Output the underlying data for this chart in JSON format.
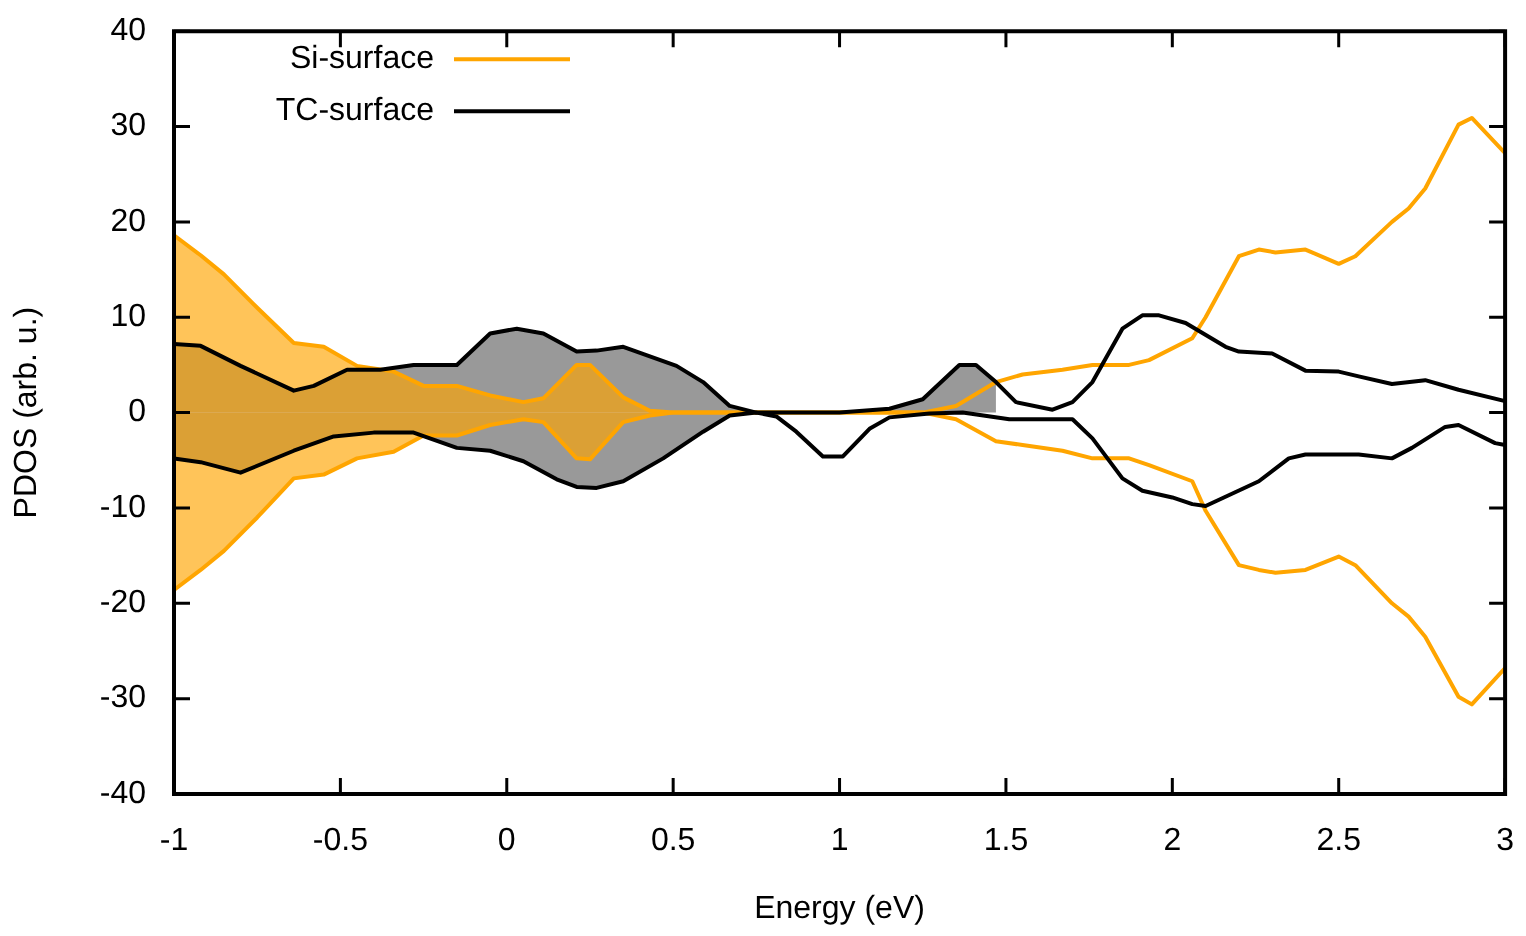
{
  "chart_data": {
    "type": "line",
    "xlabel": "Energy (eV)",
    "ylabel": "PDOS (arb. u.)",
    "xlim": [
      -1,
      3
    ],
    "xticks": [
      -1,
      -0.5,
      0,
      0.5,
      1,
      1.5,
      2,
      2.5,
      3
    ],
    "ylim": [
      -40,
      40
    ],
    "yticks": [
      -40,
      -30,
      -20,
      -10,
      0,
      10,
      20,
      30,
      40
    ],
    "legend": "top left",
    "series": [
      {
        "type": "area",
        "color": "#999999",
        "x": [
          -1,
          -0.92,
          -0.8,
          -0.64,
          -0.58,
          -0.48,
          -0.38,
          -0.28,
          -0.15,
          -0.05,
          0.03,
          0.11,
          0.21,
          0.27,
          0.35,
          0.51,
          0.59,
          0.67,
          0.75
        ],
        "values": [
          7.2,
          7.0,
          4.9,
          2.3,
          2.8,
          4.5,
          4.5,
          5.0,
          5.0,
          8.3,
          8.8,
          8.3,
          6.4,
          6.5,
          6.9,
          4.9,
          3.2,
          0.7,
          0
        ]
      },
      {
        "type": "area",
        "color": "#999999",
        "x": [
          -1,
          -0.92,
          -0.8,
          -0.64,
          -0.52,
          -0.4,
          -0.28,
          -0.15,
          -0.05,
          0.05,
          0.15,
          0.21,
          0.27,
          0.35,
          0.47,
          0.59,
          0.67,
          0.75
        ],
        "values": [
          -4.8,
          -5.2,
          -6.3,
          -4.0,
          -2.5,
          -2.1,
          -2.1,
          -3.7,
          -4.0,
          -5.1,
          -7.0,
          -7.8,
          -7.9,
          -7.2,
          -4.8,
          -2.0,
          -0.3,
          0
        ]
      },
      {
        "type": "area",
        "color": "#999999",
        "x": [
          1.15,
          1.25,
          1.36,
          1.41,
          1.47
        ],
        "values": [
          0.4,
          1.4,
          5.0,
          5.0,
          3.2
        ]
      },
      {
        "type": "area",
        "color": "#ffa500",
        "x": [
          -1,
          -0.92,
          -0.85,
          -0.75,
          -0.64,
          -0.55,
          -0.45,
          -0.34,
          -0.25,
          -0.15,
          -0.05,
          0.05,
          0.11,
          0.21,
          0.25,
          0.35,
          0.43,
          0.5
        ],
        "values": [
          18.6,
          16.5,
          14.5,
          11,
          7.3,
          6.9,
          4.9,
          4.3,
          2.8,
          2.8,
          1.8,
          1.1,
          1.5,
          5.0,
          5.0,
          1.6,
          0.2,
          0
        ]
      },
      {
        "type": "area",
        "color": "#ffa500",
        "x": [
          -1,
          -0.92,
          -0.85,
          -0.75,
          -0.64,
          -0.55,
          -0.45,
          -0.34,
          -0.25,
          -0.15,
          -0.05,
          0.05,
          0.11,
          0.21,
          0.25,
          0.35,
          0.43,
          0.5
        ],
        "values": [
          -18.6,
          -16.5,
          -14.5,
          -11,
          -6.9,
          -6.5,
          -4.8,
          -4.1,
          -2.4,
          -2.4,
          -1.3,
          -0.7,
          -1.0,
          -4.8,
          -4.9,
          -1.0,
          -0.3,
          0
        ]
      },
      {
        "name": "Si-surface",
        "color": "#ffa500",
        "x": [
          -1,
          -0.92,
          -0.85,
          -0.75,
          -0.64,
          -0.55,
          -0.45,
          -0.34,
          -0.25,
          -0.15,
          -0.05,
          0.05,
          0.11,
          0.21,
          0.25,
          0.35,
          0.43,
          0.5,
          0.7,
          1.0,
          1.25,
          1.35,
          1.47,
          1.55,
          1.67,
          1.76,
          1.87,
          1.93,
          2.06,
          2.1,
          2.2,
          2.26,
          2.31,
          2.4,
          2.5,
          2.55,
          2.66,
          2.71,
          2.76,
          2.86,
          2.9,
          3.0
        ],
        "values": [
          18.6,
          16.5,
          14.5,
          11,
          7.3,
          6.9,
          4.9,
          4.3,
          2.8,
          2.8,
          1.8,
          1.1,
          1.5,
          5.0,
          5.0,
          1.6,
          0.2,
          0,
          0,
          0,
          0,
          0.7,
          3.2,
          4.0,
          4.5,
          5.0,
          5.0,
          5.5,
          7.8,
          10.0,
          16.4,
          17.1,
          16.8,
          17.1,
          15.6,
          16.4,
          20.0,
          21.4,
          23.5,
          30.2,
          30.9,
          27.2
        ]
      },
      {
        "color": "#ffa500",
        "x": [
          -1,
          -0.92,
          -0.85,
          -0.75,
          -0.64,
          -0.55,
          -0.45,
          -0.34,
          -0.25,
          -0.15,
          -0.05,
          0.05,
          0.11,
          0.21,
          0.25,
          0.35,
          0.43,
          0.5,
          0.7,
          1.0,
          1.25,
          1.35,
          1.47,
          1.55,
          1.67,
          1.76,
          1.87,
          1.93,
          2.06,
          2.1,
          2.2,
          2.26,
          2.31,
          2.4,
          2.5,
          2.55,
          2.66,
          2.71,
          2.76,
          2.86,
          2.9,
          3.0
        ],
        "values": [
          -18.6,
          -16.5,
          -14.5,
          -11,
          -6.9,
          -6.5,
          -4.8,
          -4.1,
          -2.4,
          -2.4,
          -1.3,
          -0.7,
          -1.0,
          -4.8,
          -4.9,
          -1.0,
          -0.3,
          0,
          0,
          0,
          0,
          -0.7,
          -3.0,
          -3.4,
          -4.0,
          -4.8,
          -4.8,
          -5.5,
          -7.2,
          -10.3,
          -16.0,
          -16.5,
          -16.8,
          -16.5,
          -15.1,
          -16.0,
          -20.0,
          -21.4,
          -23.5,
          -29.8,
          -30.6,
          -26.8
        ]
      },
      {
        "name": "TC-surface",
        "color": "#000000",
        "x": [
          -1,
          -0.92,
          -0.8,
          -0.64,
          -0.58,
          -0.48,
          -0.38,
          -0.28,
          -0.15,
          -0.05,
          0.03,
          0.11,
          0.21,
          0.27,
          0.35,
          0.51,
          0.59,
          0.67,
          0.75,
          0.85,
          1.0,
          1.15,
          1.25,
          1.36,
          1.41,
          1.47,
          1.53,
          1.64,
          1.7,
          1.76,
          1.85,
          1.91,
          1.96,
          2.04,
          2.16,
          2.2,
          2.3,
          2.4,
          2.5,
          2.56,
          2.66,
          2.76,
          2.86,
          3.0
        ],
        "values": [
          7.2,
          7.0,
          4.9,
          2.3,
          2.8,
          4.5,
          4.5,
          5.0,
          5.0,
          8.3,
          8.8,
          8.3,
          6.4,
          6.5,
          6.9,
          4.9,
          3.2,
          0.7,
          0,
          0,
          0,
          0.4,
          1.4,
          5.0,
          5.0,
          3.2,
          1.1,
          0.3,
          1.1,
          3.2,
          8.8,
          10.2,
          10.2,
          9.4,
          6.9,
          6.4,
          6.2,
          4.4,
          4.3,
          3.8,
          3.0,
          3.4,
          2.4,
          1.2
        ]
      },
      {
        "color": "#000000",
        "x": [
          -1,
          -0.92,
          -0.8,
          -0.64,
          -0.52,
          -0.4,
          -0.28,
          -0.15,
          -0.05,
          0.05,
          0.15,
          0.21,
          0.27,
          0.35,
          0.47,
          0.59,
          0.67,
          0.75,
          0.81,
          0.87,
          0.95,
          1.01,
          1.09,
          1.15,
          1.27,
          1.37,
          1.51,
          1.63,
          1.7,
          1.76,
          1.85,
          1.91,
          2.0,
          2.06,
          2.1,
          2.26,
          2.35,
          2.4,
          2.56,
          2.66,
          2.72,
          2.82,
          2.86,
          2.97,
          3.0
        ],
        "values": [
          -4.8,
          -5.2,
          -6.3,
          -4.0,
          -2.5,
          -2.1,
          -2.1,
          -3.7,
          -4.0,
          -5.1,
          -7.0,
          -7.8,
          -7.9,
          -7.2,
          -4.8,
          -2.0,
          -0.3,
          0,
          -0.4,
          -2.0,
          -4.6,
          -4.6,
          -1.7,
          -0.5,
          -0.1,
          0,
          -0.7,
          -0.7,
          -0.7,
          -2.7,
          -6.9,
          -8.2,
          -8.9,
          -9.6,
          -9.8,
          -7.2,
          -4.8,
          -4.4,
          -4.4,
          -4.8,
          -3.7,
          -1.5,
          -1.3,
          -3.2,
          -3.4
        ]
      }
    ]
  }
}
